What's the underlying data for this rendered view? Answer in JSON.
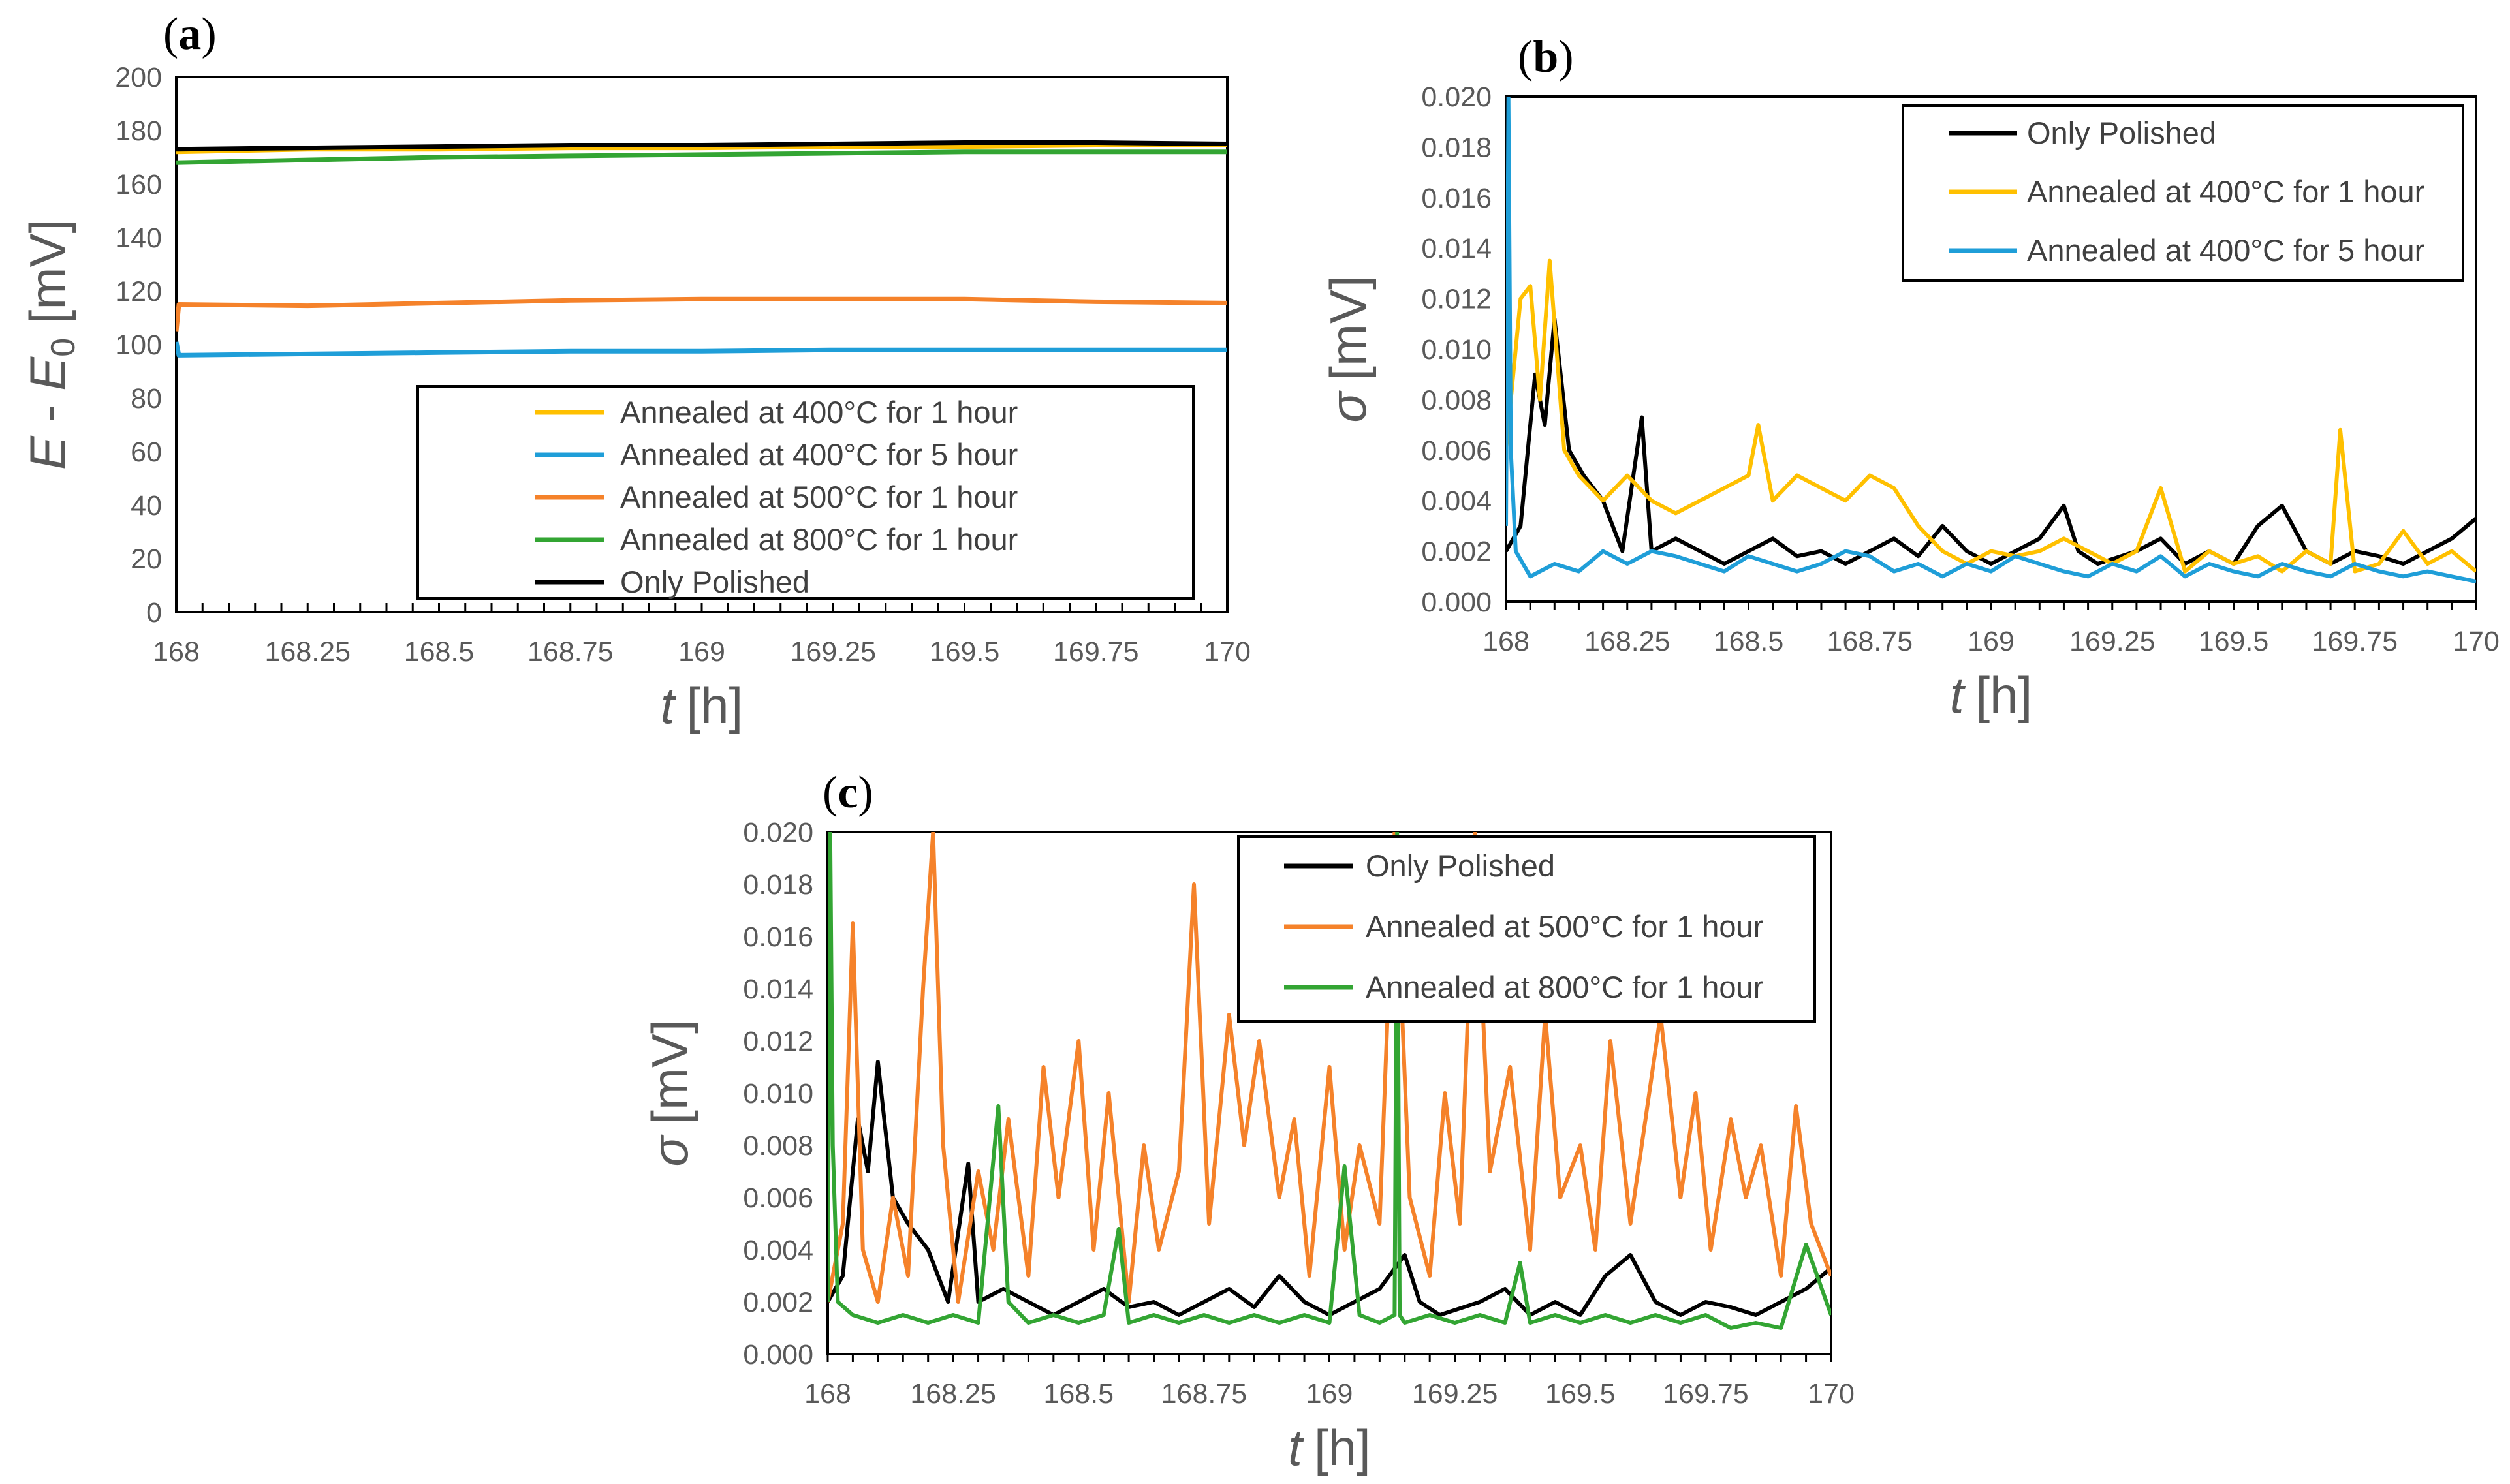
{
  "series_colors": {
    "only_polished": "#000000",
    "annealed_400_1h": "#ffc000",
    "annealed_400_5h": "#1f9ed8",
    "annealed_500_1h": "#f5822a",
    "annealed_800_1h": "#33a533"
  },
  "chart_data": [
    {
      "panel": "a",
      "panel_label_open": "(",
      "panel_label_letter": "a",
      "panel_label_close": ")",
      "type": "line",
      "xlabel_var": "t",
      "xlabel_unit": "[h]",
      "ylabel_parts": [
        "E",
        " - ",
        "E",
        "0",
        " [mV]"
      ],
      "xlim": [
        168,
        170
      ],
      "ylim": [
        0,
        200
      ],
      "xticks": [
        168,
        168.25,
        168.5,
        168.75,
        169,
        169.25,
        169.5,
        169.75,
        170
      ],
      "xtick_labels": [
        "168",
        "168.25",
        "168.5",
        "168.75",
        "169",
        "169.25",
        "169.5",
        "169.75",
        "170"
      ],
      "yticks": [
        0,
        20,
        40,
        60,
        80,
        100,
        120,
        140,
        160,
        180,
        200
      ],
      "ytick_labels": [
        "0",
        "20",
        "40",
        "60",
        "80",
        "100",
        "120",
        "140",
        "160",
        "180",
        "200"
      ],
      "legend_position": "bottom-right",
      "series": [
        {
          "key": "annealed_400_1h",
          "name": "Annealed at 400°C  for 1 hour",
          "x": [
            168,
            168.25,
            168.5,
            168.75,
            169,
            169.25,
            169.5,
            169.75,
            170
          ],
          "y": [
            172,
            173,
            173,
            173.5,
            173.5,
            174,
            174,
            174.5,
            174.5
          ]
        },
        {
          "key": "annealed_400_5h",
          "name": "Annealed at 400°C  for 5 hour",
          "x": [
            168,
            168.005,
            168.25,
            168.5,
            168.75,
            169,
            169.25,
            169.5,
            169.75,
            170
          ],
          "y": [
            101,
            96,
            96.5,
            97,
            97.5,
            97.5,
            98,
            98,
            98,
            98
          ]
        },
        {
          "key": "annealed_500_1h",
          "name": "Annealed at 500°C  for 1 hour",
          "x": [
            168,
            168.005,
            168.25,
            168.5,
            168.75,
            169,
            169.25,
            169.5,
            169.75,
            170
          ],
          "y": [
            105,
            115,
            114.5,
            115.5,
            116.5,
            117,
            117,
            117,
            116,
            115.5
          ]
        },
        {
          "key": "annealed_800_1h",
          "name": "Annealed at 800°C  for 1 hour",
          "x": [
            168,
            168.25,
            168.5,
            168.75,
            169,
            169.25,
            169.5,
            169.75,
            170
          ],
          "y": [
            168,
            169,
            170,
            170.5,
            171,
            171.5,
            172,
            172,
            172
          ]
        },
        {
          "key": "only_polished",
          "name": "Only Polished",
          "x": [
            168,
            168.25,
            168.5,
            168.75,
            169,
            169.25,
            169.5,
            169.75,
            170
          ],
          "y": [
            173,
            173.5,
            174,
            174.5,
            174.5,
            175,
            175.5,
            175.5,
            175
          ]
        }
      ],
      "legend_order": [
        "annealed_400_1h",
        "annealed_400_5h",
        "annealed_500_1h",
        "annealed_800_1h",
        "only_polished"
      ]
    },
    {
      "panel": "b",
      "panel_label_open": "(",
      "panel_label_letter": "b",
      "panel_label_close": ")",
      "type": "line",
      "xlabel_var": "t",
      "xlabel_unit": "[h]",
      "ylabel_var": "σ",
      "ylabel_unit": "[mV]",
      "xlim": [
        168,
        170
      ],
      "ylim": [
        0,
        0.02
      ],
      "xticks": [
        168,
        168.25,
        168.5,
        168.75,
        169,
        169.25,
        169.5,
        169.75,
        170
      ],
      "xtick_labels": [
        "168",
        "168.25",
        "168.5",
        "168.75",
        "169",
        "169.25",
        "169.5",
        "169.75",
        "170"
      ],
      "yticks": [
        0,
        0.002,
        0.004,
        0.006,
        0.008,
        0.01,
        0.012,
        0.014,
        0.016,
        0.018,
        0.02
      ],
      "ytick_labels": [
        "0.000",
        "0.002",
        "0.004",
        "0.006",
        "0.008",
        "0.010",
        "0.012",
        "0.014",
        "0.016",
        "0.018",
        "0.020"
      ],
      "legend_position": "top-right",
      "series": [
        {
          "key": "only_polished",
          "name": "Only Polished",
          "x": [
            168,
            168.03,
            168.06,
            168.08,
            168.1,
            168.13,
            168.16,
            168.2,
            168.24,
            168.28,
            168.3,
            168.35,
            168.4,
            168.45,
            168.5,
            168.55,
            168.6,
            168.65,
            168.7,
            168.75,
            168.8,
            168.85,
            168.9,
            168.95,
            169,
            169.05,
            169.1,
            169.15,
            169.18,
            169.22,
            169.3,
            169.35,
            169.4,
            169.45,
            169.5,
            169.55,
            169.6,
            169.65,
            169.7,
            169.75,
            169.8,
            169.85,
            169.9,
            169.95,
            170
          ],
          "y": [
            0.002,
            0.003,
            0.009,
            0.007,
            0.0112,
            0.006,
            0.005,
            0.004,
            0.002,
            0.0073,
            0.002,
            0.0025,
            0.002,
            0.0015,
            0.002,
            0.0025,
            0.0018,
            0.002,
            0.0015,
            0.002,
            0.0025,
            0.0018,
            0.003,
            0.002,
            0.0015,
            0.002,
            0.0025,
            0.0038,
            0.002,
            0.0015,
            0.002,
            0.0025,
            0.0015,
            0.002,
            0.0015,
            0.003,
            0.0038,
            0.002,
            0.0015,
            0.002,
            0.0018,
            0.0015,
            0.002,
            0.0025,
            0.0033
          ]
        },
        {
          "key": "annealed_400_1h",
          "name": "Annealed at 400°C  for 1 hour",
          "x": [
            168,
            168.03,
            168.05,
            168.07,
            168.09,
            168.12,
            168.15,
            168.2,
            168.25,
            168.3,
            168.35,
            168.4,
            168.45,
            168.5,
            168.52,
            168.55,
            168.6,
            168.65,
            168.7,
            168.75,
            168.8,
            168.85,
            168.9,
            168.95,
            169,
            169.05,
            169.1,
            169.15,
            169.2,
            169.25,
            169.3,
            169.35,
            169.4,
            169.45,
            169.5,
            169.55,
            169.6,
            169.65,
            169.7,
            169.72,
            169.75,
            169.8,
            169.85,
            169.9,
            169.95,
            170
          ],
          "y": [
            0.006,
            0.012,
            0.0125,
            0.008,
            0.0135,
            0.006,
            0.005,
            0.004,
            0.005,
            0.004,
            0.0035,
            0.004,
            0.0045,
            0.005,
            0.007,
            0.004,
            0.005,
            0.0045,
            0.004,
            0.005,
            0.0045,
            0.003,
            0.002,
            0.0015,
            0.002,
            0.0018,
            0.002,
            0.0025,
            0.002,
            0.0015,
            0.002,
            0.0045,
            0.0012,
            0.002,
            0.0015,
            0.0018,
            0.0012,
            0.002,
            0.0015,
            0.0068,
            0.0012,
            0.0015,
            0.0028,
            0.0015,
            0.002,
            0.0012
          ]
        },
        {
          "key": "annealed_400_5h",
          "name": "Annealed at 400°C  for 5 hour",
          "x": [
            168,
            168.005,
            168.01,
            168.02,
            168.05,
            168.1,
            168.15,
            168.2,
            168.25,
            168.3,
            168.35,
            168.4,
            168.45,
            168.5,
            168.55,
            168.6,
            168.65,
            168.7,
            168.75,
            168.8,
            168.85,
            168.9,
            168.95,
            169,
            169.05,
            169.1,
            169.15,
            169.2,
            169.25,
            169.3,
            169.35,
            169.4,
            169.45,
            169.5,
            169.55,
            169.6,
            169.65,
            169.7,
            169.75,
            169.8,
            169.85,
            169.9,
            169.95,
            170
          ],
          "y": [
            0.003,
            0.02,
            0.006,
            0.002,
            0.001,
            0.0015,
            0.0012,
            0.002,
            0.0015,
            0.002,
            0.0018,
            0.0015,
            0.0012,
            0.0018,
            0.0015,
            0.0012,
            0.0015,
            0.002,
            0.0018,
            0.0012,
            0.0015,
            0.001,
            0.0015,
            0.0012,
            0.0018,
            0.0015,
            0.0012,
            0.001,
            0.0015,
            0.0012,
            0.0018,
            0.001,
            0.0015,
            0.0012,
            0.001,
            0.0015,
            0.0012,
            0.001,
            0.0015,
            0.0012,
            0.001,
            0.0012,
            0.001,
            0.0008
          ]
        }
      ],
      "legend_order": [
        "only_polished",
        "annealed_400_1h",
        "annealed_400_5h"
      ]
    },
    {
      "panel": "c",
      "panel_label_open": "(",
      "panel_label_letter": "c",
      "panel_label_close": ")",
      "type": "line",
      "xlabel_var": "t",
      "xlabel_unit": "[h]",
      "ylabel_var": "σ",
      "ylabel_unit": "[mV]",
      "xlim": [
        168,
        170
      ],
      "ylim": [
        0,
        0.02
      ],
      "xticks": [
        168,
        168.25,
        168.5,
        168.75,
        169,
        169.25,
        169.5,
        169.75,
        170
      ],
      "xtick_labels": [
        "168",
        "168.25",
        "168.5",
        "168.75",
        "169",
        "169.25",
        "169.5",
        "169.75",
        "170"
      ],
      "yticks": [
        0,
        0.002,
        0.004,
        0.006,
        0.008,
        0.01,
        0.012,
        0.014,
        0.016,
        0.018,
        0.02
      ],
      "ytick_labels": [
        "0.000",
        "0.002",
        "0.004",
        "0.006",
        "0.008",
        "0.010",
        "0.012",
        "0.014",
        "0.016",
        "0.018",
        "0.020"
      ],
      "legend_position": "top-right",
      "series": [
        {
          "key": "only_polished",
          "name": "Only Polished",
          "x": [
            168,
            168.03,
            168.06,
            168.08,
            168.1,
            168.13,
            168.16,
            168.2,
            168.24,
            168.28,
            168.3,
            168.35,
            168.4,
            168.45,
            168.5,
            168.55,
            168.6,
            168.65,
            168.7,
            168.75,
            168.8,
            168.85,
            168.9,
            168.95,
            169,
            169.05,
            169.1,
            169.15,
            169.18,
            169.22,
            169.3,
            169.35,
            169.4,
            169.45,
            169.5,
            169.55,
            169.6,
            169.65,
            169.7,
            169.75,
            169.8,
            169.85,
            169.9,
            169.95,
            170
          ],
          "y": [
            0.002,
            0.003,
            0.009,
            0.007,
            0.0112,
            0.006,
            0.005,
            0.004,
            0.002,
            0.0073,
            0.002,
            0.0025,
            0.002,
            0.0015,
            0.002,
            0.0025,
            0.0018,
            0.002,
            0.0015,
            0.002,
            0.0025,
            0.0018,
            0.003,
            0.002,
            0.0015,
            0.002,
            0.0025,
            0.0038,
            0.002,
            0.0015,
            0.002,
            0.0025,
            0.0015,
            0.002,
            0.0015,
            0.003,
            0.0038,
            0.002,
            0.0015,
            0.002,
            0.0018,
            0.0015,
            0.002,
            0.0025,
            0.0033
          ]
        },
        {
          "key": "annealed_500_1h",
          "name": "Annealed at 500°C  for 1 hour",
          "x": [
            168,
            168.03,
            168.05,
            168.07,
            168.1,
            168.13,
            168.16,
            168.19,
            168.21,
            168.23,
            168.26,
            168.3,
            168.33,
            168.36,
            168.4,
            168.43,
            168.46,
            168.5,
            168.53,
            168.56,
            168.6,
            168.63,
            168.66,
            168.7,
            168.73,
            168.76,
            168.8,
            168.83,
            168.86,
            168.9,
            168.93,
            168.96,
            169,
            169.03,
            169.06,
            169.1,
            169.13,
            169.16,
            169.2,
            169.23,
            169.26,
            169.29,
            169.32,
            169.36,
            169.4,
            169.43,
            169.46,
            169.5,
            169.53,
            169.56,
            169.6,
            169.63,
            169.66,
            169.7,
            169.73,
            169.76,
            169.8,
            169.83,
            169.86,
            169.9,
            169.93,
            169.96,
            170
          ],
          "y": [
            0.002,
            0.005,
            0.0165,
            0.004,
            0.002,
            0.006,
            0.003,
            0.014,
            0.02,
            0.008,
            0.002,
            0.007,
            0.004,
            0.009,
            0.003,
            0.011,
            0.006,
            0.012,
            0.004,
            0.01,
            0.002,
            0.008,
            0.004,
            0.007,
            0.018,
            0.005,
            0.013,
            0.008,
            0.012,
            0.006,
            0.009,
            0.003,
            0.011,
            0.004,
            0.008,
            0.005,
            0.02,
            0.006,
            0.003,
            0.01,
            0.005,
            0.02,
            0.007,
            0.011,
            0.004,
            0.013,
            0.006,
            0.008,
            0.004,
            0.012,
            0.005,
            0.009,
            0.013,
            0.006,
            0.01,
            0.004,
            0.009,
            0.006,
            0.008,
            0.003,
            0.0095,
            0.005,
            0.003
          ]
        },
        {
          "key": "annealed_800_1h",
          "name": "Annealed at 800°C  for 1 hour",
          "x": [
            168,
            168.005,
            168.01,
            168.02,
            168.05,
            168.1,
            168.15,
            168.2,
            168.25,
            168.3,
            168.34,
            168.36,
            168.4,
            168.45,
            168.5,
            168.55,
            168.58,
            168.6,
            168.65,
            168.7,
            168.75,
            168.8,
            168.85,
            168.9,
            168.95,
            169,
            169.03,
            169.06,
            169.1,
            169.13,
            169.135,
            169.14,
            169.15,
            169.2,
            169.25,
            169.3,
            169.35,
            169.38,
            169.4,
            169.45,
            169.5,
            169.55,
            169.6,
            169.65,
            169.7,
            169.75,
            169.8,
            169.85,
            169.9,
            169.95,
            170
          ],
          "y": [
            0.002,
            0.02,
            0.008,
            0.002,
            0.0015,
            0.0012,
            0.0015,
            0.0012,
            0.0015,
            0.0012,
            0.0095,
            0.002,
            0.0012,
            0.0015,
            0.0012,
            0.0015,
            0.0048,
            0.0012,
            0.0015,
            0.0012,
            0.0015,
            0.0012,
            0.0015,
            0.0012,
            0.0015,
            0.0012,
            0.0072,
            0.0015,
            0.0012,
            0.0015,
            0.02,
            0.0015,
            0.0012,
            0.0015,
            0.0012,
            0.0015,
            0.0012,
            0.0035,
            0.0012,
            0.0015,
            0.0012,
            0.0015,
            0.0012,
            0.0015,
            0.0012,
            0.0015,
            0.001,
            0.0012,
            0.001,
            0.0042,
            0.0015
          ]
        }
      ],
      "legend_order": [
        "only_polished",
        "annealed_500_1h",
        "annealed_800_1h"
      ]
    }
  ]
}
